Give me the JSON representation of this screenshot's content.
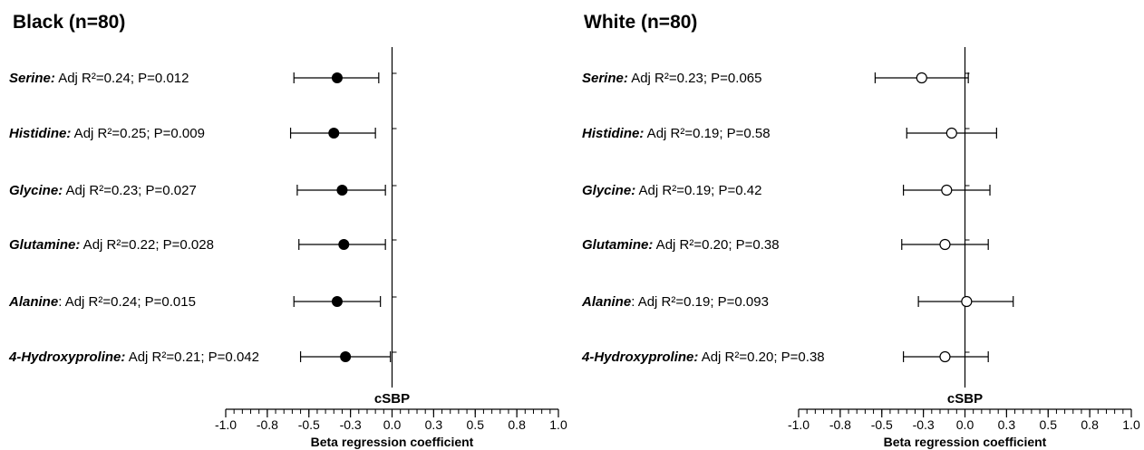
{
  "chart_data": [
    {
      "type": "scatter",
      "title": "Black (n=80)",
      "axis_caption": "cSBP",
      "xlabel": "Beta regression coefficient",
      "xlim": [
        -1.0,
        1.0
      ],
      "tick_labels": [
        "-1.0",
        "-0.8",
        "-0.5",
        "-0.3",
        "0.0",
        "0.3",
        "0.5",
        "0.8",
        "1.0"
      ],
      "marker": "filled",
      "rows": [
        {
          "name": "Serine:",
          "stats": " Adj R²=0.24; P=0.012",
          "estimate": -0.33,
          "ci_low": -0.59,
          "ci_high": -0.08
        },
        {
          "name": "Histidine:",
          "stats": " Adj R²=0.25; P=0.009",
          "estimate": -0.35,
          "ci_low": -0.61,
          "ci_high": -0.1
        },
        {
          "name": "Glycine:",
          "stats": " Adj R²=0.23; P=0.027",
          "estimate": -0.3,
          "ci_low": -0.57,
          "ci_high": -0.04
        },
        {
          "name": "Glutamine:",
          "stats": " Adj R²=0.22; P=0.028",
          "estimate": -0.29,
          "ci_low": -0.56,
          "ci_high": -0.04
        },
        {
          "name": "Alanine",
          "stats": ": Adj R²=0.24; P=0.015",
          "estimate": -0.33,
          "ci_low": -0.59,
          "ci_high": -0.07
        },
        {
          "name": "4-Hydroxyproline:",
          "stats": " Adj R²=0.21; P=0.042",
          "estimate": -0.28,
          "ci_low": -0.55,
          "ci_high": -0.01
        }
      ]
    },
    {
      "type": "scatter",
      "title": "White (n=80)",
      "axis_caption": "cSBP",
      "xlabel": "Beta regression coefficient",
      "xlim": [
        -1.0,
        1.0
      ],
      "tick_labels": [
        "-1.0",
        "-0.8",
        "-0.5",
        "-0.3",
        "0.0",
        "0.3",
        "0.5",
        "0.8",
        "1.0"
      ],
      "marker": "open",
      "rows": [
        {
          "name": "Serine:",
          "stats": " Adj R²=0.23; P=0.065",
          "estimate": -0.26,
          "ci_low": -0.54,
          "ci_high": 0.02
        },
        {
          "name": "Histidine:",
          "stats": " Adj R²=0.19; P=0.58",
          "estimate": -0.08,
          "ci_low": -0.35,
          "ci_high": 0.19
        },
        {
          "name": "Glycine:",
          "stats": " Adj R²=0.19; P=0.42",
          "estimate": -0.11,
          "ci_low": -0.37,
          "ci_high": 0.15
        },
        {
          "name": "Glutamine:",
          "stats": " Adj R²=0.20; P=0.38",
          "estimate": -0.12,
          "ci_low": -0.38,
          "ci_high": 0.14
        },
        {
          "name": "Alanine",
          "stats": ": Adj R²=0.19; P=0.093",
          "estimate": 0.01,
          "ci_low": -0.28,
          "ci_high": 0.29
        },
        {
          "name": "4-Hydroxyproline:",
          "stats": " Adj R²=0.20; P=0.38",
          "estimate": -0.12,
          "ci_low": -0.37,
          "ci_high": 0.14
        }
      ]
    }
  ]
}
